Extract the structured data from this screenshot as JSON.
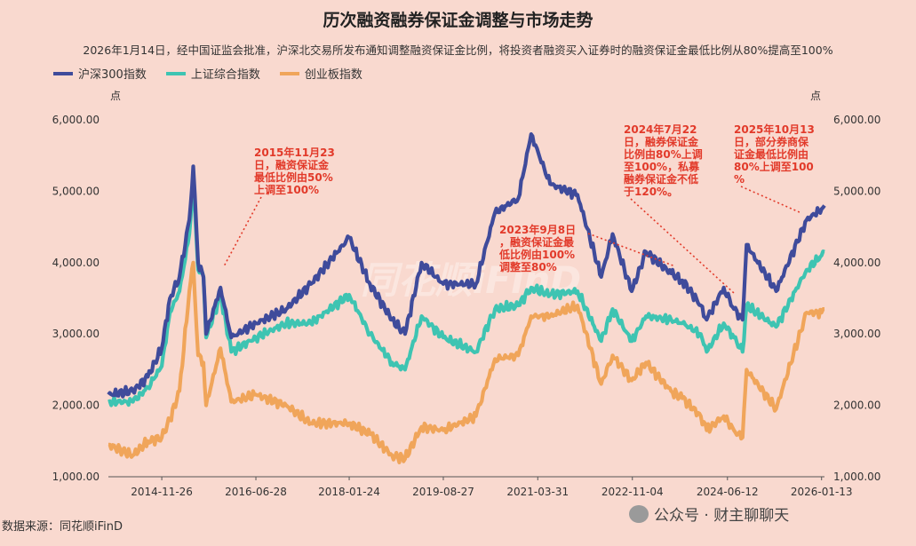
{
  "title": "历次融资融券保证金调整与市场走势",
  "subtitle": "2026年1月14日，经中国证监会批准，沪深北交易所发布通知调整融资保证金比例，将投资者融资买入证券时的融资保证金最低比例从80%提高至100%",
  "source": "数据来源：同花顺iFinD",
  "wechat": "公众号 · 财主聊聊天",
  "watermark": "同花顺iFinD",
  "colors": {
    "hs300": "#3f4b9b",
    "sz": "#3ec4b2",
    "cyb": "#f0a55a",
    "annotation": "#e23a2a"
  },
  "chart_data": {
    "type": "line",
    "title": "历次融资融券保证金调整与市场走势",
    "ylabel_left": "点",
    "ylabel_right": "点",
    "ylim": [
      1000,
      6000
    ],
    "yticks": [
      "1,000.00",
      "2,000.00",
      "3,000.00",
      "4,000.00",
      "5,000.00",
      "6,000.00"
    ],
    "xlim": [
      "2014-01-01",
      "2026-01-31"
    ],
    "xticks": [
      "2014-11-26",
      "2016-06-28",
      "2018-01-24",
      "2019-08-27",
      "2021-03-31",
      "2022-11-04",
      "2024-06-12",
      "2026-01-13"
    ],
    "legend_position": "top-left",
    "series": [
      {
        "name": "沪深300指数",
        "x": [
          "2014-01-01",
          "2014-06-01",
          "2014-09-01",
          "2014-11-26",
          "2015-01-15",
          "2015-03-15",
          "2015-05-15",
          "2015-06-08",
          "2015-07-08",
          "2015-08-10",
          "2015-08-26",
          "2015-11-23",
          "2016-01-28",
          "2016-06-28",
          "2017-01-01",
          "2017-06-01",
          "2018-01-24",
          "2018-06-01",
          "2018-10-15",
          "2019-01-03",
          "2019-04-15",
          "2019-08-27",
          "2020-03-15",
          "2020-07-10",
          "2020-12-01",
          "2021-02-18",
          "2021-06-15",
          "2021-12-01",
          "2022-04-26",
          "2022-07-05",
          "2022-10-31",
          "2023-01-27",
          "2023-07-01",
          "2023-09-08",
          "2023-12-31",
          "2024-02-05",
          "2024-05-20",
          "2024-07-22",
          "2024-09-13",
          "2024-10-08",
          "2025-04-08",
          "2025-10-13",
          "2026-01-13",
          "2026-01-31"
        ],
        "values": [
          2150,
          2200,
          2400,
          2800,
          3500,
          3800,
          4600,
          5350,
          4000,
          3800,
          3000,
          3650,
          2950,
          3150,
          3350,
          3700,
          4350,
          3700,
          3200,
          3000,
          4000,
          3700,
          3700,
          4700,
          4900,
          5800,
          5100,
          4950,
          3800,
          4400,
          3600,
          4150,
          3850,
          3750,
          3400,
          3200,
          3650,
          3350,
          3200,
          4250,
          3600,
          4600,
          4750,
          4800
        ]
      },
      {
        "name": "上证综合指数",
        "x": [
          "2014-01-01",
          "2014-06-01",
          "2014-09-01",
          "2014-11-26",
          "2015-01-15",
          "2015-03-15",
          "2015-05-15",
          "2015-06-08",
          "2015-07-08",
          "2015-08-10",
          "2015-08-26",
          "2015-11-23",
          "2016-01-28",
          "2016-06-28",
          "2017-01-01",
          "2017-06-01",
          "2018-01-24",
          "2018-06-01",
          "2018-10-15",
          "2019-01-03",
          "2019-04-15",
          "2019-08-27",
          "2020-03-15",
          "2020-07-10",
          "2020-12-01",
          "2021-02-18",
          "2021-06-15",
          "2021-12-01",
          "2022-04-26",
          "2022-07-05",
          "2022-10-31",
          "2023-01-27",
          "2023-07-01",
          "2023-09-08",
          "2023-12-31",
          "2024-02-05",
          "2024-05-20",
          "2024-07-22",
          "2024-09-13",
          "2024-10-08",
          "2025-04-08",
          "2025-10-13",
          "2026-01-13",
          "2026-01-31"
        ],
        "values": [
          2050,
          2050,
          2250,
          2550,
          3300,
          3600,
          4400,
          5150,
          3900,
          3800,
          2950,
          3550,
          2750,
          2950,
          3150,
          3150,
          3550,
          3000,
          2600,
          2500,
          3250,
          2950,
          2750,
          3350,
          3400,
          3650,
          3550,
          3600,
          2900,
          3350,
          2900,
          3250,
          3200,
          3150,
          3000,
          2750,
          3150,
          2950,
          2750,
          3400,
          3100,
          3900,
          4100,
          4150
        ]
      },
      {
        "name": "创业板指数",
        "x": [
          "2014-01-01",
          "2014-06-01",
          "2014-09-01",
          "2014-11-26",
          "2015-01-15",
          "2015-03-15",
          "2015-05-15",
          "2015-06-08",
          "2015-07-08",
          "2015-08-10",
          "2015-08-26",
          "2015-11-23",
          "2016-01-28",
          "2016-06-28",
          "2017-01-01",
          "2017-06-01",
          "2018-01-24",
          "2018-06-01",
          "2018-10-15",
          "2019-01-03",
          "2019-04-15",
          "2019-08-27",
          "2020-03-15",
          "2020-07-10",
          "2020-12-01",
          "2021-02-18",
          "2021-06-15",
          "2021-12-01",
          "2022-04-26",
          "2022-07-05",
          "2022-10-31",
          "2023-01-27",
          "2023-07-01",
          "2023-09-08",
          "2023-12-31",
          "2024-02-05",
          "2024-05-20",
          "2024-07-22",
          "2024-09-13",
          "2024-10-08",
          "2025-04-08",
          "2025-10-13",
          "2026-01-13",
          "2026-01-31"
        ],
        "values": [
          1450,
          1300,
          1500,
          1550,
          1800,
          2200,
          3600,
          4000,
          2700,
          2600,
          2000,
          2800,
          2050,
          2150,
          2000,
          1750,
          1750,
          1600,
          1300,
          1250,
          1700,
          1650,
          1850,
          2650,
          2700,
          3250,
          3250,
          3400,
          2300,
          2700,
          2350,
          2600,
          2200,
          2100,
          1850,
          1650,
          1850,
          1650,
          1550,
          2500,
          1950,
          3300,
          3300,
          3350
        ]
      }
    ],
    "annotations": [
      {
        "date": "2015-11-23",
        "text": [
          "2015年11月23",
          "日，融资保证金",
          "最低比例由50%",
          "上调至100%"
        ]
      },
      {
        "date": "2023-09-08",
        "text": [
          "2023年9月8日",
          "，融资保证金最",
          "低比例由100%",
          "调整至80%"
        ]
      },
      {
        "date": "2024-07-22",
        "text": [
          "2024年7月22",
          "日，融券保证金",
          "比例由80%上调",
          "至100%，私募",
          "融券保证金不低",
          "于120%。"
        ]
      },
      {
        "date": "2025-10-13",
        "text": [
          "2025年10月13",
          "日，部分券商保",
          "证金最低比例由",
          "80%上调至100",
          "%"
        ]
      }
    ]
  }
}
